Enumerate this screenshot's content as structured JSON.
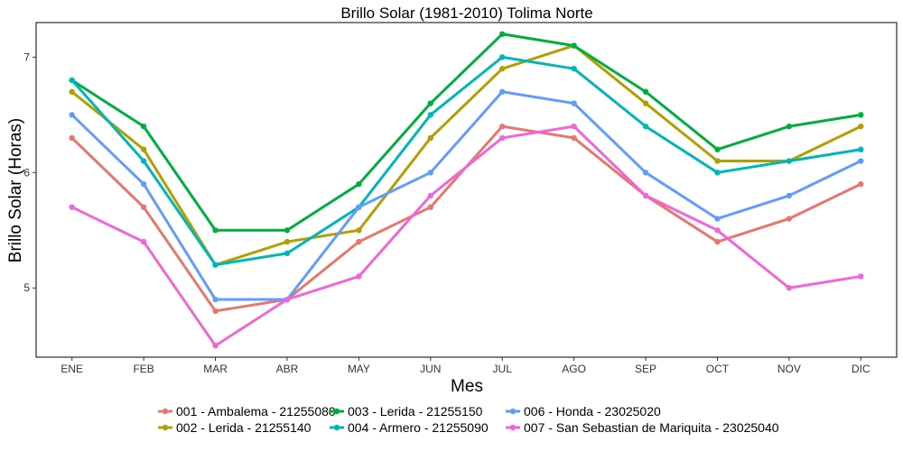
{
  "chart_data": {
    "type": "line",
    "title": "Brillo Solar (1981-2010)  Tolima Norte",
    "xlabel": "Mes",
    "ylabel": "Brillo Solar (Horas)",
    "categories": [
      "ENE",
      "FEB",
      "MAR",
      "ABR",
      "MAY",
      "JUN",
      "JUL",
      "AGO",
      "SEP",
      "OCT",
      "NOV",
      "DIC"
    ],
    "ylim": [
      4.4,
      7.3
    ],
    "yticks": [
      5,
      6,
      7
    ],
    "grid": false,
    "legend_position": "bottom",
    "series": [
      {
        "name": "001 - Ambalema - 21255080",
        "color": "#E7766C",
        "values": [
          6.3,
          5.7,
          4.8,
          4.9,
          5.4,
          5.7,
          6.4,
          6.3,
          5.8,
          5.4,
          5.6,
          5.9
        ]
      },
      {
        "name": "002 - Lerida - 21255140",
        "color": "#B39F00",
        "values": [
          6.7,
          6.2,
          5.2,
          5.4,
          5.5,
          6.3,
          6.9,
          7.1,
          6.6,
          6.1,
          6.1,
          6.4
        ]
      },
      {
        "name": "003 - Lerida - 21255150",
        "color": "#00AE3E",
        "values": [
          6.8,
          6.4,
          5.5,
          5.5,
          5.9,
          6.6,
          7.2,
          7.1,
          6.7,
          6.2,
          6.4,
          6.5
        ]
      },
      {
        "name": "004 - Armero - 21255090",
        "color": "#00B6BA",
        "values": [
          6.8,
          6.1,
          5.2,
          5.3,
          5.7,
          6.5,
          7.0,
          6.9,
          6.4,
          6.0,
          6.1,
          6.2
        ]
      },
      {
        "name": "006 - Honda - 23025020",
        "color": "#619CFF",
        "values": [
          6.5,
          5.9,
          4.9,
          4.9,
          5.7,
          6.0,
          6.7,
          6.6,
          6.0,
          5.6,
          5.8,
          6.1
        ]
      },
      {
        "name": "007 - San Sebastian de Mariquita - 23025040",
        "color": "#F066D8",
        "values": [
          5.7,
          5.4,
          4.5,
          4.9,
          5.1,
          5.8,
          6.3,
          6.4,
          5.8,
          5.5,
          5.0,
          5.1
        ]
      }
    ]
  }
}
